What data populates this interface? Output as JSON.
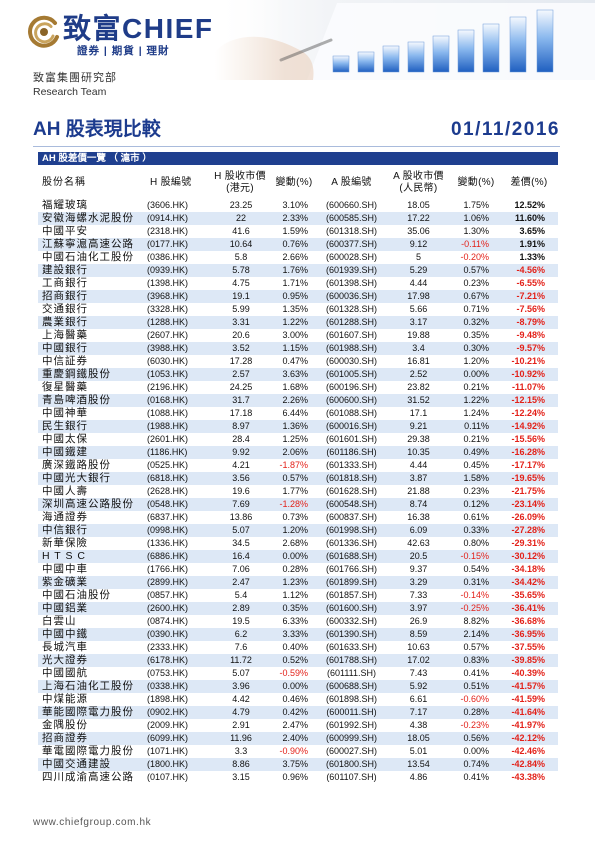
{
  "header": {
    "logo_cn": "致富",
    "logo_en": "CHIEF",
    "logo_tagline": "證券 | 期貨 | 理財",
    "dept_cn": "致富集團研究部",
    "dept_en": "Research Team"
  },
  "report": {
    "title": "AH 股表現比較",
    "date": "01/11/2016"
  },
  "table": {
    "section_label": "AH 股差價一覽 （ 滬市 ）",
    "columns": {
      "name": "股份名稱",
      "h_code": "H 股編號",
      "h_price": [
        "H 股收市價",
        "(港元)"
      ],
      "h_change": "變動(%)",
      "a_code": "A 股編號",
      "a_price": [
        "A 股收市價",
        "(人民幣)"
      ],
      "a_change": "變動(%)",
      "premium": "差價(%)"
    },
    "rows": [
      [
        "福耀玻璃",
        "(3606.HK)",
        "23.25",
        "3.10%",
        "(600660.SH)",
        "18.05",
        "1.75%",
        "12.52%"
      ],
      [
        "安徽海螺水泥股份",
        "(0914.HK)",
        "22",
        "2.33%",
        "(600585.SH)",
        "17.22",
        "1.06%",
        "11.60%"
      ],
      [
        "中國平安",
        "(2318.HK)",
        "41.6",
        "1.59%",
        "(601318.SH)",
        "35.06",
        "1.30%",
        "3.65%"
      ],
      [
        "江蘇寧滬高速公路",
        "(0177.HK)",
        "10.64",
        "0.76%",
        "(600377.SH)",
        "9.12",
        "-0.11%",
        "1.91%"
      ],
      [
        "中國石油化工股份",
        "(0386.HK)",
        "5.8",
        "2.66%",
        "(600028.SH)",
        "5",
        "-0.20%",
        "1.33%"
      ],
      [
        "建設銀行",
        "(0939.HK)",
        "5.78",
        "1.76%",
        "(601939.SH)",
        "5.29",
        "0.57%",
        "-4.56%"
      ],
      [
        "工商銀行",
        "(1398.HK)",
        "4.75",
        "1.71%",
        "(601398.SH)",
        "4.44",
        "0.23%",
        "-6.55%"
      ],
      [
        "招商銀行",
        "(3968.HK)",
        "19.1",
        "0.95%",
        "(600036.SH)",
        "17.98",
        "0.67%",
        "-7.21%"
      ],
      [
        "交通銀行",
        "(3328.HK)",
        "5.99",
        "1.35%",
        "(601328.SH)",
        "5.66",
        "0.71%",
        "-7.56%"
      ],
      [
        "農業銀行",
        "(1288.HK)",
        "3.31",
        "1.22%",
        "(601288.SH)",
        "3.17",
        "0.32%",
        "-8.79%"
      ],
      [
        "上海醫藥",
        "(2607.HK)",
        "20.6",
        "3.00%",
        "(601607.SH)",
        "19.88",
        "0.35%",
        "-9.48%"
      ],
      [
        "中國銀行",
        "(3988.HK)",
        "3.52",
        "1.15%",
        "(601988.SH)",
        "3.4",
        "0.30%",
        "-9.57%"
      ],
      [
        "中信証券",
        "(6030.HK)",
        "17.28",
        "0.47%",
        "(600030.SH)",
        "16.81",
        "1.20%",
        "-10.21%"
      ],
      [
        "重慶鋼鐵股份",
        "(1053.HK)",
        "2.57",
        "3.63%",
        "(601005.SH)",
        "2.52",
        "0.00%",
        "-10.92%"
      ],
      [
        "復星醫藥",
        "(2196.HK)",
        "24.25",
        "1.68%",
        "(600196.SH)",
        "23.82",
        "0.21%",
        "-11.07%"
      ],
      [
        "青島啤酒股份",
        "(0168.HK)",
        "31.7",
        "2.26%",
        "(600600.SH)",
        "31.52",
        "1.22%",
        "-12.15%"
      ],
      [
        "中國神華",
        "(1088.HK)",
        "17.18",
        "6.44%",
        "(601088.SH)",
        "17.1",
        "1.24%",
        "-12.24%"
      ],
      [
        "民生銀行",
        "(1988.HK)",
        "8.97",
        "1.36%",
        "(600016.SH)",
        "9.21",
        "0.11%",
        "-14.92%"
      ],
      [
        "中國太保",
        "(2601.HK)",
        "28.4",
        "1.25%",
        "(601601.SH)",
        "29.38",
        "0.21%",
        "-15.56%"
      ],
      [
        "中國鐵建",
        "(1186.HK)",
        "9.92",
        "2.06%",
        "(601186.SH)",
        "10.35",
        "0.49%",
        "-16.28%"
      ],
      [
        "廣深鐵路股份",
        "(0525.HK)",
        "4.21",
        "-1.87%",
        "(601333.SH)",
        "4.44",
        "0.45%",
        "-17.17%"
      ],
      [
        "中國光大銀行",
        "(6818.HK)",
        "3.56",
        "0.57%",
        "(601818.SH)",
        "3.87",
        "1.58%",
        "-19.65%"
      ],
      [
        "中國人壽",
        "(2628.HK)",
        "19.6",
        "1.77%",
        "(601628.SH)",
        "21.88",
        "0.23%",
        "-21.75%"
      ],
      [
        "深圳高速公路股份",
        "(0548.HK)",
        "7.69",
        "-1.28%",
        "(600548.SH)",
        "8.74",
        "0.12%",
        "-23.14%"
      ],
      [
        "海通證券",
        "(6837.HK)",
        "13.86",
        "0.73%",
        "(600837.SH)",
        "16.38",
        "0.61%",
        "-26.09%"
      ],
      [
        "中信銀行",
        "(0998.HK)",
        "5.07",
        "1.20%",
        "(601998.SH)",
        "6.09",
        "0.33%",
        "-27.28%"
      ],
      [
        "新華保險",
        "(1336.HK)",
        "34.5",
        "2.68%",
        "(601336.SH)",
        "42.63",
        "0.80%",
        "-29.31%"
      ],
      [
        "H T S C",
        "(6886.HK)",
        "16.4",
        "0.00%",
        "(601688.SH)",
        "20.5",
        "-0.15%",
        "-30.12%"
      ],
      [
        "中國中車",
        "(1766.HK)",
        "7.06",
        "0.28%",
        "(601766.SH)",
        "9.37",
        "0.54%",
        "-34.18%"
      ],
      [
        "紫金礦業",
        "(2899.HK)",
        "2.47",
        "1.23%",
        "(601899.SH)",
        "3.29",
        "0.31%",
        "-34.42%"
      ],
      [
        "中國石油股份",
        "(0857.HK)",
        "5.4",
        "1.12%",
        "(601857.SH)",
        "7.33",
        "-0.14%",
        "-35.65%"
      ],
      [
        "中國鋁業",
        "(2600.HK)",
        "2.89",
        "0.35%",
        "(601600.SH)",
        "3.97",
        "-0.25%",
        "-36.41%"
      ],
      [
        "白雲山",
        "(0874.HK)",
        "19.5",
        "6.33%",
        "(600332.SH)",
        "26.9",
        "8.82%",
        "-36.68%"
      ],
      [
        "中國中鐵",
        "(0390.HK)",
        "6.2",
        "3.33%",
        "(601390.SH)",
        "8.59",
        "2.14%",
        "-36.95%"
      ],
      [
        "長城汽車",
        "(2333.HK)",
        "7.6",
        "0.40%",
        "(601633.SH)",
        "10.63",
        "0.57%",
        "-37.55%"
      ],
      [
        "光大證券",
        "(6178.HK)",
        "11.72",
        "0.52%",
        "(601788.SH)",
        "17.02",
        "0.83%",
        "-39.85%"
      ],
      [
        "中國國航",
        "(0753.HK)",
        "5.07",
        "-0.59%",
        "(601111.SH)",
        "7.43",
        "0.41%",
        "-40.39%"
      ],
      [
        "上海石油化工股份",
        "(0338.HK)",
        "3.96",
        "0.00%",
        "(600688.SH)",
        "5.92",
        "0.51%",
        "-41.57%"
      ],
      [
        "中煤能源",
        "(1898.HK)",
        "4.42",
        "0.46%",
        "(601898.SH)",
        "6.61",
        "-0.60%",
        "-41.59%"
      ],
      [
        "華能國際電力股份",
        "(0902.HK)",
        "4.79",
        "0.42%",
        "(600011.SH)",
        "7.17",
        "0.28%",
        "-41.64%"
      ],
      [
        "金隅股份",
        "(2009.HK)",
        "2.91",
        "2.47%",
        "(601992.SH)",
        "4.38",
        "-0.23%",
        "-41.97%"
      ],
      [
        "招商證券",
        "(6099.HK)",
        "11.96",
        "2.40%",
        "(600999.SH)",
        "18.05",
        "0.56%",
        "-42.12%"
      ],
      [
        "華電國際電力股份",
        "(1071.HK)",
        "3.3",
        "-0.90%",
        "(600027.SH)",
        "5.01",
        "0.00%",
        "-42.46%"
      ],
      [
        "中國交通建設",
        "(1800.HK)",
        "8.86",
        "3.75%",
        "(601800.SH)",
        "13.54",
        "0.74%",
        "-42.84%"
      ],
      [
        "四川成渝高速公路",
        "(0107.HK)",
        "3.15",
        "0.96%",
        "(601107.SH)",
        "4.86",
        "0.41%",
        "-43.38%"
      ]
    ]
  },
  "footer": {
    "url": "www.chiefgroup.com.hk"
  },
  "icons": {
    "logo": "chief-swirl-logo-icon",
    "banner": "bar-chart-drawing-icon"
  },
  "colors": {
    "brand_navy": "#1f3f8f",
    "negative_red": "#e32119",
    "row_stripe": "#dde8f6",
    "logo_gold": "#b38a3e"
  }
}
